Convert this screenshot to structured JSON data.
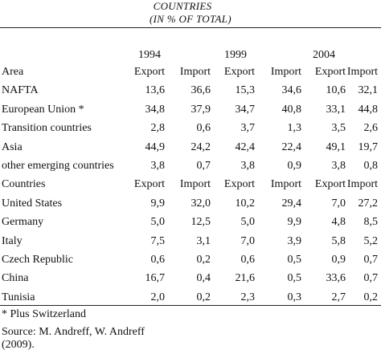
{
  "caption": {
    "line1": "COUNTRIES",
    "line2": "(IN % OF TOTAL)"
  },
  "years": [
    "1994",
    "1999",
    "2004"
  ],
  "area_header": {
    "label": "Area",
    "cols": [
      "Export",
      "Import",
      "Export",
      "Import",
      "Export",
      "Import"
    ]
  },
  "area_rows": [
    {
      "label": "NAFTA",
      "values": [
        "13,6",
        "36,6",
        "15,3",
        "34,6",
        "10,6",
        "32,1"
      ]
    },
    {
      "label": "European Union *",
      "values": [
        "34,8",
        "37,9",
        "34,7",
        "40,8",
        "33,1",
        "44,8"
      ]
    },
    {
      "label": "Transition countries",
      "values": [
        "2,8",
        "0,6",
        "3,7",
        "1,3",
        "3,5",
        "2,6"
      ]
    },
    {
      "label": "Asia",
      "values": [
        "44,9",
        "24,2",
        "42,4",
        "22,4",
        "49,1",
        "19,7"
      ]
    },
    {
      "label": "other emerging countries",
      "values": [
        "3,8",
        "0,7",
        "3,8",
        "0,9",
        "3,8",
        "0,8"
      ]
    }
  ],
  "country_header": {
    "label": "Countries",
    "cols": [
      "Export",
      "Import",
      "Export",
      "Import",
      "Export",
      "Import"
    ]
  },
  "country_rows": [
    {
      "label": "United States",
      "values": [
        "9,9",
        "32,0",
        "10,2",
        "29,4",
        "7,0",
        "27,2"
      ]
    },
    {
      "label": "Germany",
      "values": [
        "5,0",
        "12,5",
        "5,0",
        "9,9",
        "4,8",
        "8,5"
      ]
    },
    {
      "label": "Italy",
      "values": [
        "7,5",
        "3,1",
        "7,0",
        "3,9",
        "5,8",
        "5,2"
      ]
    },
    {
      "label": "Czech Republic",
      "values": [
        "0,6",
        "0,2",
        "0,6",
        "0,5",
        "0,9",
        "0,7"
      ]
    },
    {
      "label": "China",
      "values": [
        "16,7",
        "0,4",
        "21,6",
        "0,5",
        "33,6",
        "0,7"
      ]
    },
    {
      "label": "Tunisia",
      "values": [
        "2,0",
        "0,2",
        "2,3",
        "0,3",
        "2,7",
        "0,2"
      ]
    }
  ],
  "footnote": "* Plus Switzerland",
  "source": {
    "line1": "Source: M. Andreff,  W. Andreff",
    "line2": "(2009)."
  }
}
